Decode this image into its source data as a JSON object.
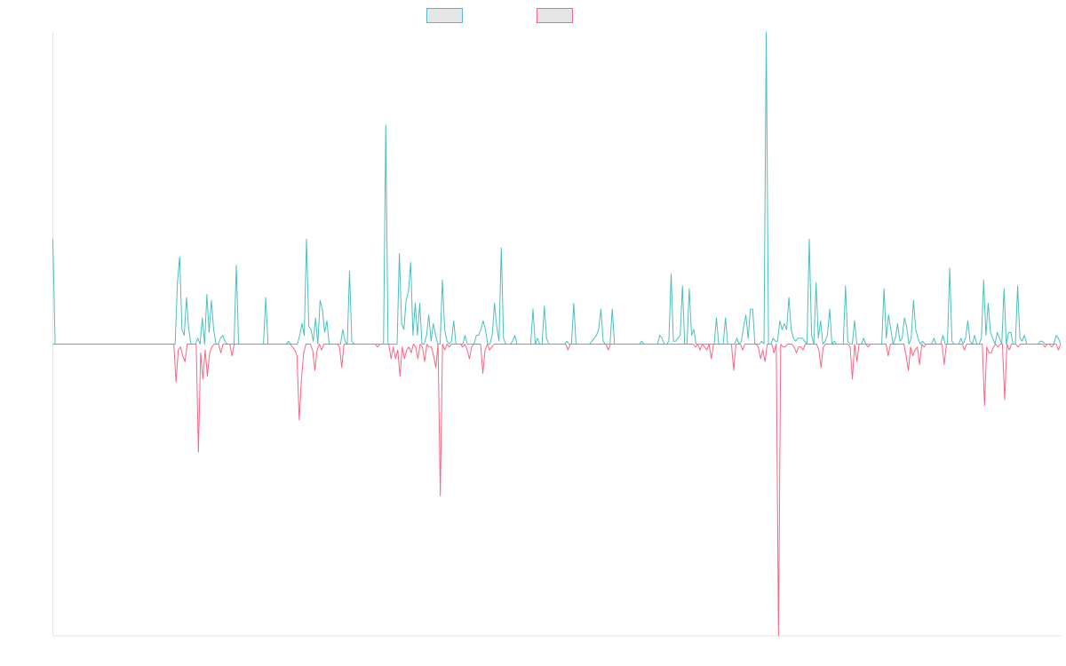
{
  "chart_data": {
    "type": "line",
    "title": "",
    "xlabel": "",
    "ylabel": "",
    "grid": false,
    "legend_position": "top-center",
    "colors": {
      "upper": "#4bc0c0",
      "lower": "#ff6384",
      "legend_fill": "#e6e6e6",
      "axis": "#e6e6e6"
    },
    "ylim": [
      -1.0,
      1.07
    ],
    "series": [
      {
        "key": "upper",
        "values": [
          0.36,
          0,
          0,
          0,
          0,
          0,
          0,
          0,
          0,
          0,
          0,
          0,
          0,
          0,
          0,
          0,
          0,
          0,
          0,
          0,
          0,
          0,
          0,
          0,
          0,
          0,
          0,
          0,
          0,
          0,
          0,
          0,
          0,
          0,
          0,
          0,
          0,
          0,
          0,
          0,
          0,
          0,
          0,
          0,
          0,
          0,
          0,
          0,
          0,
          0,
          0,
          0,
          0,
          0,
          0,
          0.21,
          0.3,
          0.05,
          0.03,
          0.16,
          0.05,
          0,
          0,
          0,
          0.02,
          0,
          0.09,
          0,
          0.17,
          0.04,
          0.15,
          0.05,
          0,
          0,
          0.02,
          0.03,
          0.01,
          0,
          0,
          0,
          0,
          0.27,
          0,
          0,
          0,
          0,
          0,
          0,
          0,
          0,
          0,
          0,
          0,
          0,
          0.16,
          0,
          0,
          0,
          0,
          0,
          0,
          0,
          0,
          0,
          0.01,
          0,
          0,
          0,
          0,
          0.03,
          0.07,
          0.03,
          0.36,
          0.06,
          0.05,
          0.01,
          0.09,
          0,
          0.15,
          0.12,
          0.04,
          0.08,
          0,
          0,
          0,
          0,
          0,
          0,
          0.05,
          0.01,
          0,
          0.25,
          0.01,
          0,
          0,
          0,
          0,
          0,
          0,
          0,
          0,
          0,
          0,
          0,
          0,
          0,
          0,
          0.75,
          0,
          0,
          0,
          0,
          0,
          0.31,
          0.07,
          0.05,
          0.15,
          0.18,
          0.28,
          0.03,
          0.14,
          0.03,
          0.14,
          0,
          0,
          0.03,
          0.1,
          0.01,
          0.07,
          0.03,
          0,
          0,
          0.22,
          0.05,
          0.01,
          0,
          0.01,
          0.08,
          0,
          0,
          0,
          0,
          0.03,
          0,
          0,
          0,
          0,
          0.03,
          0.03,
          0.05,
          0.08,
          0.05,
          0,
          0,
          0.03,
          0.14,
          0.06,
          0.01,
          0.33,
          0.02,
          0,
          0,
          0,
          0.01,
          0.03,
          0,
          0,
          0,
          0,
          0,
          0,
          0,
          0.12,
          0,
          0.02,
          0,
          0,
          0.13,
          0.02,
          0,
          0,
          0,
          0,
          0,
          0,
          0,
          0,
          0.01,
          0,
          0,
          0.14,
          0,
          0,
          0,
          0,
          0,
          0,
          0,
          0.01,
          0.02,
          0.03,
          0.05,
          0.12,
          0.01,
          0,
          0,
          0,
          0.12,
          0,
          0,
          0,
          0,
          0,
          0,
          0,
          0,
          0,
          0,
          0,
          0,
          0.01,
          0,
          0,
          0,
          0,
          0,
          0,
          0,
          0.03,
          0.02,
          0,
          0,
          0.01,
          0.24,
          0.01,
          0.01,
          0.02,
          0.03,
          0.2,
          0,
          0,
          0.19,
          0.03,
          0.05,
          0,
          0,
          0,
          0,
          0,
          0,
          0,
          0,
          0,
          0.09,
          0,
          0,
          0,
          0.09,
          0,
          0,
          0,
          0,
          0.02,
          0,
          0.01,
          0.06,
          0.1,
          0.02,
          0.12,
          0.12,
          0,
          0,
          0,
          0.01,
          0,
          1.07,
          0,
          0,
          0.02,
          0.01,
          0.01,
          0.08,
          0.05,
          0.07,
          0.05,
          0.16,
          0.05,
          0.02,
          0.01,
          0.02,
          0.02,
          0.02,
          0.01,
          0,
          0.36,
          0.03,
          0,
          0.21,
          0.02,
          0.08,
          0,
          0.01,
          0.03,
          0.12,
          0,
          0.01,
          0,
          0,
          0,
          0,
          0.2,
          0.01,
          0,
          0,
          0.08,
          0,
          0,
          0,
          0.02,
          0,
          0,
          0,
          0,
          0,
          0,
          0,
          0,
          0.19,
          0.02,
          0.1,
          0.05,
          0,
          0.02,
          0.07,
          0.01,
          0.02,
          0.09,
          0.06,
          0,
          0.02,
          0.15,
          0.05,
          0.02,
          0,
          0.01,
          0,
          0,
          0,
          0,
          0.02,
          0,
          0,
          0,
          0.03,
          0,
          0,
          0.26,
          0.01,
          0,
          0,
          0,
          0.02,
          0,
          0.02,
          0.08,
          0.01,
          0,
          0.03,
          0,
          0,
          0.02,
          0.22,
          0.03,
          0.14,
          0.04,
          0.02,
          0,
          0.04,
          0.02,
          0,
          0.19,
          0,
          0.04,
          0.04,
          0,
          0,
          0.2,
          0.02,
          0.01,
          0.03,
          0,
          0,
          0,
          0,
          0,
          0,
          0.01,
          0.01,
          0,
          0,
          0,
          0,
          0,
          0.03,
          0.02,
          0
        ]
      },
      {
        "key": "lower",
        "values": [
          0,
          0,
          0,
          0,
          0,
          0,
          0,
          0,
          0,
          0,
          0,
          0,
          0,
          0,
          0,
          0,
          0,
          0,
          0,
          0,
          0,
          0,
          0,
          0,
          0,
          0,
          0,
          0,
          0,
          0,
          0,
          0,
          0,
          0,
          0,
          0,
          0,
          0,
          0,
          0,
          0,
          0,
          0,
          0,
          0,
          0,
          0,
          0,
          0,
          0,
          0,
          0,
          0,
          0,
          0,
          -0.13,
          -0.02,
          -0.01,
          -0.04,
          -0.06,
          0,
          0,
          0,
          0,
          0,
          -0.37,
          -0.03,
          -0.12,
          -0.02,
          -0.11,
          -0.03,
          -0.01,
          0,
          0,
          0,
          -0.03,
          0,
          0,
          0,
          0,
          -0.04,
          0,
          0,
          0,
          0,
          0,
          0,
          0,
          0,
          0,
          0,
          0,
          0,
          0,
          0,
          0,
          0,
          0,
          0,
          0,
          0,
          0,
          0,
          0,
          0,
          0,
          0,
          -0.01,
          -0.02,
          -0.04,
          -0.26,
          -0.12,
          -0.03,
          0,
          0,
          0,
          -0.02,
          -0.09,
          -0.02,
          0,
          -0.02,
          0,
          0,
          0,
          0,
          0,
          0,
          0,
          -0.01,
          -0.08,
          0,
          0,
          0,
          0,
          0,
          0,
          0,
          0,
          0,
          0,
          0,
          0,
          0,
          0,
          0,
          -0.01,
          0,
          0,
          0,
          0,
          0,
          -0.05,
          -0.01,
          -0.05,
          -0.02,
          -0.11,
          -0.01,
          -0.05,
          -0.02,
          -0.01,
          -0.03,
          0,
          -0.01,
          -0.05,
          0,
          -0.01,
          -0.06,
          0,
          -0.01,
          -0.01,
          -0.04,
          -0.08,
          0,
          -0.52,
          0,
          -0.02,
          0,
          -0.01,
          0,
          0,
          0,
          0,
          0,
          -0.01,
          0,
          -0.02,
          -0.05,
          -0.01,
          0,
          0,
          0,
          0,
          -0.1,
          -0.02,
          0,
          -0.02,
          -0.01,
          0,
          0,
          0,
          0,
          0,
          0,
          0,
          0,
          0,
          0,
          0,
          0,
          0,
          0,
          0,
          0,
          0,
          0,
          0,
          0,
          0,
          0,
          0,
          0,
          0,
          0,
          0,
          0,
          0,
          0,
          0,
          0,
          0,
          -0.02,
          0,
          0,
          0,
          0,
          0,
          0,
          0,
          0,
          0,
          0,
          0,
          0,
          0,
          0,
          0,
          0,
          0,
          -0.02,
          0,
          0,
          0,
          0,
          0,
          0,
          0,
          0,
          0,
          0,
          0,
          0,
          0,
          0,
          0,
          0,
          0,
          0,
          0,
          0,
          0,
          0,
          0,
          0,
          0,
          0,
          0,
          0,
          0,
          0,
          0,
          0,
          0,
          0,
          0,
          0,
          0,
          0,
          -0.01,
          0,
          -0.02,
          0,
          -0.01,
          -0.02,
          0,
          -0.05,
          0,
          0,
          0,
          0,
          0,
          0,
          0,
          0,
          0,
          -0.09,
          0,
          0,
          0,
          -0.02,
          0,
          0,
          0,
          0,
          0,
          0,
          -0.01,
          -0.05,
          -0.02,
          -0.06,
          0,
          0,
          0,
          -0.03,
          0,
          -1.0,
          0,
          -0.01,
          -0.01,
          0,
          0,
          0,
          -0.01,
          -0.03,
          -0.01,
          -0.01,
          -0.02,
          0,
          0,
          0,
          0,
          0,
          0,
          -0.02,
          -0.08,
          -0.01,
          0,
          0,
          0,
          0,
          0,
          0,
          0,
          0,
          0,
          0,
          0,
          -0.01,
          -0.12,
          0,
          -0.06,
          0,
          0,
          0,
          0,
          -0.01,
          0,
          0,
          0,
          0,
          0,
          0,
          0,
          0,
          -0.04,
          0,
          0,
          0,
          0,
          0,
          0,
          0,
          -0.04,
          -0.09,
          -0.01,
          -0.04,
          -0.02,
          -0.01,
          -0.07,
          0,
          -0.01,
          0,
          0,
          0,
          0,
          0,
          0,
          0,
          0,
          -0.07,
          0,
          0,
          0,
          0,
          0,
          0,
          0,
          0,
          -0.02,
          0,
          0,
          0,
          0,
          0,
          0,
          0,
          0,
          -0.21,
          -0.01,
          -0.03,
          -0.03,
          -0.01,
          0,
          -0.01,
          0,
          0,
          -0.19,
          0,
          -0.02,
          0,
          0,
          0,
          -0.01,
          0,
          0,
          0,
          0,
          0,
          0,
          0,
          0,
          0,
          0,
          0,
          -0.01,
          0,
          0,
          -0.01,
          0,
          0,
          -0.02,
          0
        ]
      }
    ]
  }
}
